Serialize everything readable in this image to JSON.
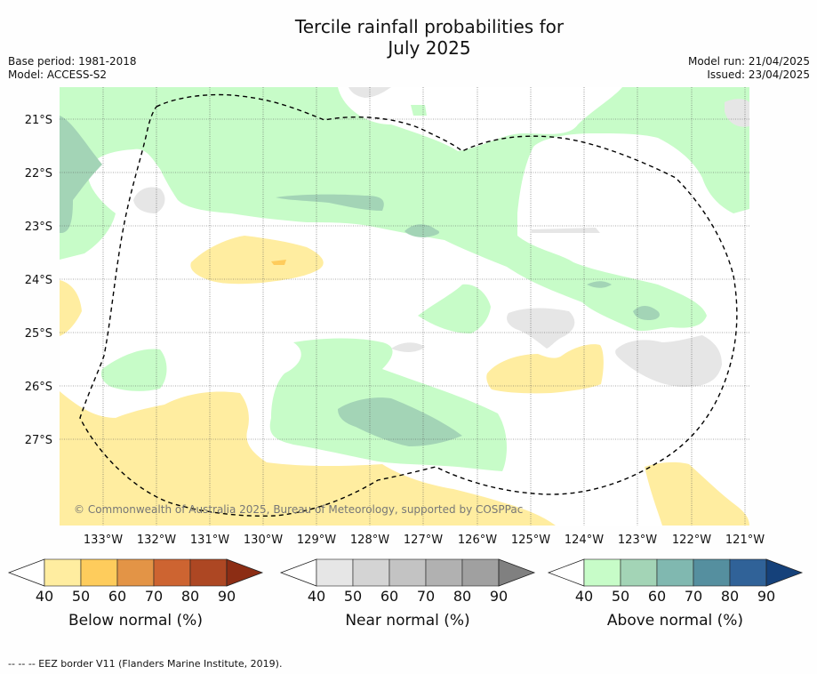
{
  "title": {
    "line1": "Tercile rainfall probabilities for",
    "line2": "July 2025"
  },
  "info_left": {
    "base_period": "Base period: 1981-2018",
    "model": "Model: ACCESS-S2"
  },
  "info_right": {
    "model_run": "Model run: 21/04/2025",
    "issued": "Issued: 23/04/2025"
  },
  "map": {
    "lat_labels": [
      "21°S",
      "22°S",
      "23°S",
      "24°S",
      "25°S",
      "26°S",
      "27°S"
    ],
    "lon_labels": [
      "133°W",
      "132°W",
      "131°W",
      "130°W",
      "129°W",
      "128°W",
      "127°W",
      "126°W",
      "125°W",
      "124°W",
      "123°W",
      "122°W",
      "121°W"
    ],
    "copyright": "© Commonwealth of Australia 2025, Bureau of Meteorology, supported by COSPPac",
    "grid": true
  },
  "legends": [
    {
      "title": "Below normal (%)",
      "ticks": [
        "40",
        "50",
        "60",
        "70",
        "80",
        "90"
      ],
      "colors": [
        "#ffeda0",
        "#fecc5c",
        "#e39446",
        "#cd6431",
        "#ad4723",
        "#8c2d14"
      ]
    },
    {
      "title": "Near normal (%)",
      "ticks": [
        "40",
        "50",
        "60",
        "70",
        "80",
        "90"
      ],
      "colors": [
        "#e6e6e6",
        "#d4d4d4",
        "#c3c3c3",
        "#b1b1b1",
        "#a0a0a0",
        "#808080"
      ]
    },
    {
      "title": "Above normal (%)",
      "ticks": [
        "40",
        "50",
        "60",
        "70",
        "80",
        "90"
      ],
      "colors": [
        "#c7fcc8",
        "#a3d4b6",
        "#80b8b0",
        "#558f9f",
        "#306298",
        "#15417a"
      ]
    }
  ],
  "footnote": "--  --  -- EEZ border V11 (Flanders Marine Institute, 2019)."
}
